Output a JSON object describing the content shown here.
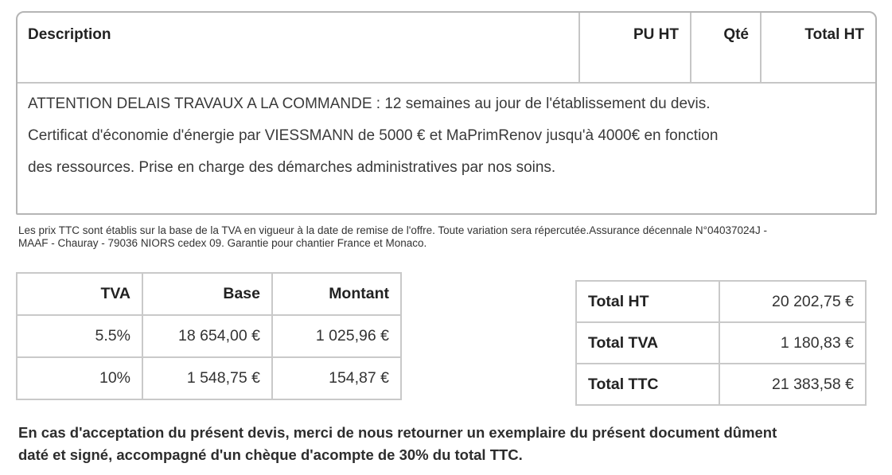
{
  "items_table": {
    "columns": {
      "description": "Description",
      "pu_ht": "PU HT",
      "qte": "Qté",
      "total_ht": "Total HT"
    },
    "row_lines": [
      "ATTENTION DELAIS TRAVAUX A LA COMMANDE : 12 semaines au jour de l'établissement du devis.",
      "Certificat d'économie d'énergie par VIESSMANN de 5000 € et MaPrimRenov jusqu'à 4000€ en fonction",
      "des ressources. Prise en charge des démarches administratives par nos soins."
    ]
  },
  "fine_print": {
    "line1": "Les prix TTC sont établis sur la base de la TVA en vigueur à la date de remise de l'offre. Toute variation sera répercutée.Assurance décennale N°04037024J -",
    "line2": "MAAF - Chauray - 79036 NIORS cedex 09. Garantie pour chantier France et Monaco."
  },
  "tva_table": {
    "headers": [
      "TVA",
      "Base",
      "Montant"
    ],
    "rows": [
      [
        "5.5%",
        "18 654,00 €",
        "1 025,96 €"
      ],
      [
        "10%",
        "1 548,75 €",
        "154,87 €"
      ]
    ]
  },
  "totals_table": {
    "rows": [
      {
        "label": "Total HT",
        "value": "20 202,75 €"
      },
      {
        "label": "Total TVA",
        "value": "1 180,83 €"
      },
      {
        "label": "Total TTC",
        "value": "21 383,58 €"
      }
    ]
  },
  "footer_note": {
    "line1": "En cas d'acceptation du présent devis, merci de nous retourner un exemplaire du présent document dûment",
    "line2": "daté et signé, accompagné d'un chèque d'acompte de 30% du total TTC."
  },
  "colors": {
    "border_outer": "#b5b5b5",
    "border_inner": "#c9c9c9",
    "text": "#333333"
  }
}
